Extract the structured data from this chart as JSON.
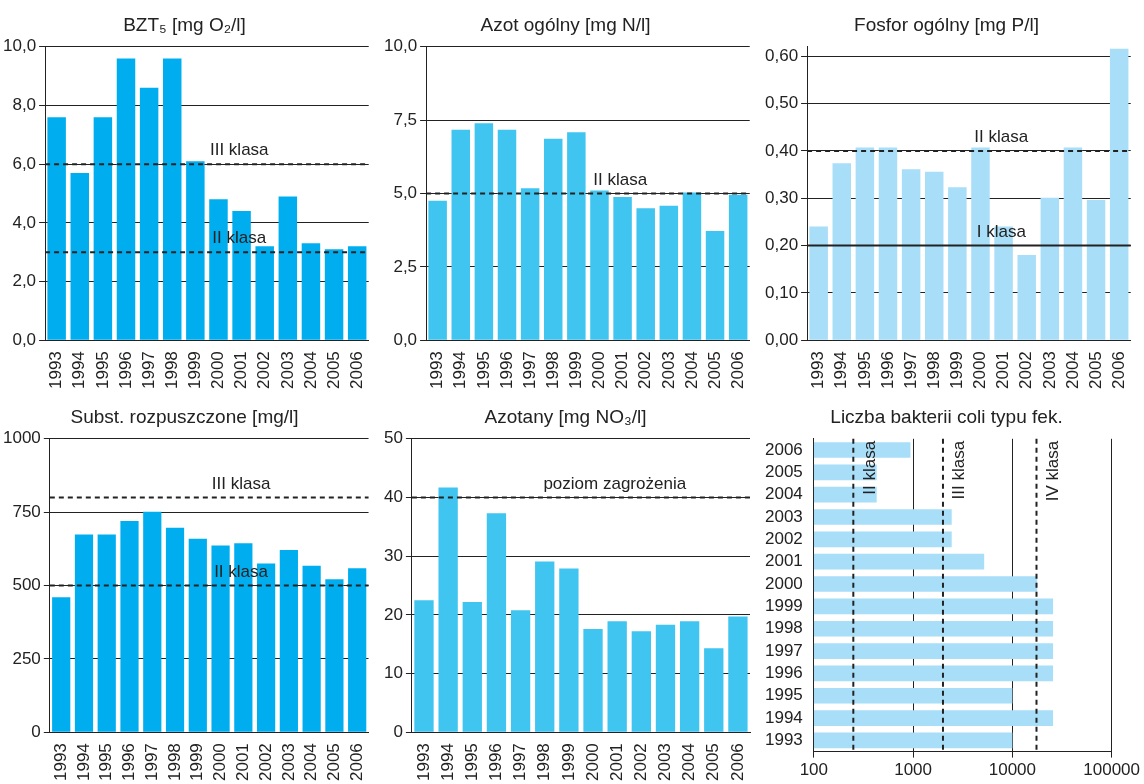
{
  "chart_data": [
    {
      "type": "bar",
      "title": "BZT₅ [mg O₂/l]",
      "categories": [
        "1993",
        "1994",
        "1995",
        "1996",
        "1997",
        "1998",
        "1999",
        "2000",
        "2001",
        "2002",
        "2003",
        "2004",
        "2005",
        "2006"
      ],
      "values": [
        7.6,
        5.7,
        7.6,
        9.6,
        8.6,
        9.6,
        6.1,
        4.8,
        4.4,
        3.2,
        4.9,
        3.3,
        3.1,
        3.2
      ],
      "color": "#00aeef",
      "ylim": [
        0,
        10
      ],
      "yticks": [
        {
          "value": 0,
          "label": "0,0"
        },
        {
          "value": 2,
          "label": "2,0"
        },
        {
          "value": 4,
          "label": "4,0"
        },
        {
          "value": 6,
          "label": "6,0"
        },
        {
          "value": 8,
          "label": "8,0"
        },
        {
          "value": 10,
          "label": "10,0"
        }
      ],
      "grid": "y",
      "ref_lines": [
        {
          "axis": "y",
          "value": 6,
          "label": "III klasa",
          "line_style": "dashed"
        },
        {
          "axis": "y",
          "value": 3,
          "label": "II klasa",
          "line_style": "dashed"
        }
      ]
    },
    {
      "type": "bar",
      "title": "Azot ogólny [mg N/l]",
      "categories": [
        "1993",
        "1994",
        "1995",
        "1996",
        "1997",
        "1998",
        "1999",
        "2000",
        "2001",
        "2002",
        "2003",
        "2004",
        "2005",
        "2006"
      ],
      "values": [
        4.75,
        7.17,
        7.39,
        7.17,
        5.18,
        6.87,
        7.09,
        5.1,
        4.88,
        4.5,
        4.58,
        5.03,
        3.72,
        4.96
      ],
      "color": "#40c4f0",
      "ylim": [
        0,
        10
      ],
      "yticks": [
        {
          "value": 0,
          "label": "0,0"
        },
        {
          "value": 2.5,
          "label": "2,5"
        },
        {
          "value": 5,
          "label": "5,0"
        },
        {
          "value": 7.5,
          "label": "7,5"
        },
        {
          "value": 10,
          "label": "10,0"
        }
      ],
      "grid": "y",
      "ref_lines": [
        {
          "axis": "y",
          "value": 5,
          "label": "II klasa",
          "line_style": "dashed"
        }
      ]
    },
    {
      "type": "bar",
      "title": "Fosfor ogólny [mg P/l]",
      "categories": [
        "1993",
        "1994",
        "1995",
        "1996",
        "1997",
        "1998",
        "1999",
        "2000",
        "2001",
        "2002",
        "2003",
        "2004",
        "2005",
        "2006"
      ],
      "values": [
        0.24,
        0.374,
        0.407,
        0.407,
        0.361,
        0.356,
        0.323,
        0.407,
        0.24,
        0.18,
        0.301,
        0.407,
        0.296,
        0.616
      ],
      "color": "#a8def8",
      "ylim": [
        0,
        0.62
      ],
      "yticks": [
        {
          "value": 0,
          "label": "0,00"
        },
        {
          "value": 0.1,
          "label": "0,10"
        },
        {
          "value": 0.2,
          "label": "0,20"
        },
        {
          "value": 0.3,
          "label": "0,30"
        },
        {
          "value": 0.4,
          "label": "0,40"
        },
        {
          "value": 0.5,
          "label": "0,50"
        },
        {
          "value": 0.6,
          "label": "0,60"
        }
      ],
      "grid": "y",
      "ref_lines": [
        {
          "axis": "y",
          "value": 0.4,
          "label": "II klasa",
          "line_style": "dashed"
        },
        {
          "axis": "y",
          "value": 0.2,
          "label": "I klasa",
          "line_style": "solid"
        }
      ]
    },
    {
      "type": "bar",
      "title": "Subst. rozpuszczone [mg/l]",
      "categories": [
        "1993",
        "1994",
        "1995",
        "1996",
        "1997",
        "1998",
        "1999",
        "2000",
        "2001",
        "2002",
        "2003",
        "2004",
        "2005",
        "2006"
      ],
      "values": [
        460,
        674,
        674,
        720,
        751,
        697,
        659,
        636,
        644,
        575,
        621,
        567,
        521,
        559
      ],
      "color": "#00aeef",
      "ylim": [
        0,
        1000
      ],
      "yticks": [
        0,
        250,
        500,
        750,
        1000
      ],
      "grid": "y",
      "ref_lines": [
        {
          "axis": "y",
          "value": 800,
          "label": "III klasa",
          "line_style": "dashed"
        },
        {
          "axis": "y",
          "value": 500,
          "label": "II klasa",
          "line_style": "dashed"
        }
      ]
    },
    {
      "type": "bar",
      "title": "Azotany [mg NO₃/l]",
      "categories": [
        "1993",
        "1994",
        "1995",
        "1996",
        "1997",
        "1998",
        "1999",
        "2000",
        "2001",
        "2002",
        "2003",
        "2004",
        "2005",
        "2006"
      ],
      "values": [
        22.5,
        41.7,
        22.2,
        37.3,
        20.8,
        29.1,
        27.9,
        17.6,
        18.9,
        17.2,
        18.3,
        18.9,
        14.3,
        19.7
      ],
      "color": "#40c4f0",
      "ylim": [
        0,
        50
      ],
      "yticks": [
        0,
        10,
        20,
        30,
        40,
        50
      ],
      "grid": "y",
      "ref_lines": [
        {
          "axis": "y",
          "value": 40,
          "label": "poziom zagrożenia",
          "line_style": "dashed"
        }
      ]
    },
    {
      "type": "bar",
      "orientation": "horizontal",
      "log": "x",
      "title": "Liczba bakterii coli typu fek.",
      "categories": [
        "2006",
        "2005",
        "2004",
        "2003",
        "2002",
        "2001",
        "2000",
        "1999",
        "1998",
        "1997",
        "1996",
        "1995",
        "1994",
        "1993"
      ],
      "values": [
        940,
        430,
        430,
        2450,
        2450,
        5200,
        17800,
        25700,
        25700,
        25700,
        25700,
        10000,
        25700,
        10000
      ],
      "color": "#a8def8",
      "xlim": [
        100,
        100000
      ],
      "xticks": [
        100,
        1000,
        10000,
        100000
      ],
      "grid": "x",
      "ref_lines": [
        {
          "axis": "x",
          "value": 250,
          "label": "II klasa",
          "line_style": "dashed"
        },
        {
          "axis": "x",
          "value": 2000,
          "label": "III klasa",
          "line_style": "dashed"
        },
        {
          "axis": "x",
          "value": 17500,
          "label": "IV klasa",
          "line_style": "dashed"
        }
      ]
    }
  ]
}
